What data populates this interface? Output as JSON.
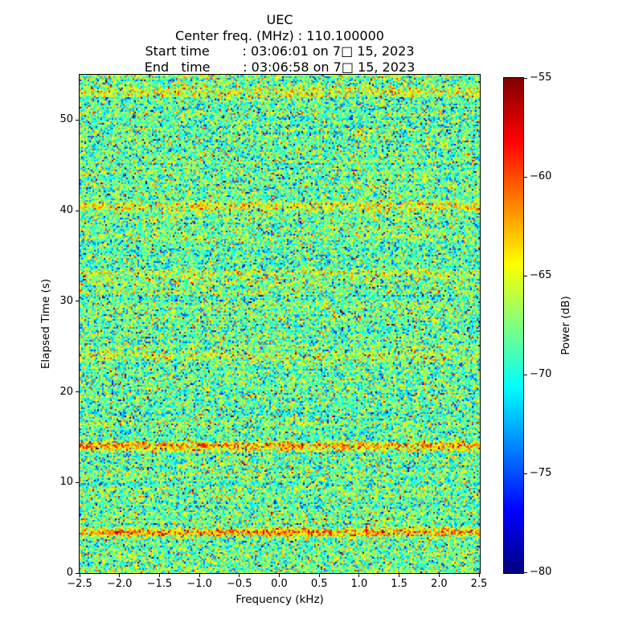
{
  "chart_data": {
    "type": "heatmap",
    "variant": "spectrogram",
    "title": "UEC",
    "annotations": [
      "Center freq. (MHz) : 110.100000",
      "Start time        : 03:06:01 on 7□ 15, 2023",
      "End   time        : 03:06:58 on 7□ 15, 2023"
    ],
    "xlabel": "Frequency (kHz)",
    "ylabel": "Elapsed Time (s)",
    "xlim": [
      -2.5,
      2.5
    ],
    "ylim": [
      0,
      55
    ],
    "grid": false,
    "xticks": [
      {
        "v": -2.5,
        "label": "−2.5"
      },
      {
        "v": -2.0,
        "label": "−2.0"
      },
      {
        "v": -1.5,
        "label": "−1.5"
      },
      {
        "v": -1.0,
        "label": "−1.0"
      },
      {
        "v": -0.5,
        "label": "−0.5"
      },
      {
        "v": 0.0,
        "label": "0.0"
      },
      {
        "v": 0.5,
        "label": "0.5"
      },
      {
        "v": 1.0,
        "label": "1.0"
      },
      {
        "v": 1.5,
        "label": "1.5"
      },
      {
        "v": 2.0,
        "label": "2.0"
      },
      {
        "v": 2.5,
        "label": "2.5"
      }
    ],
    "yticks": [
      {
        "v": 0,
        "label": "0"
      },
      {
        "v": 10,
        "label": "10"
      },
      {
        "v": 20,
        "label": "20"
      },
      {
        "v": 30,
        "label": "30"
      },
      {
        "v": 40,
        "label": "40"
      },
      {
        "v": 50,
        "label": "50"
      }
    ],
    "colorbar": {
      "label": "Power (dB)",
      "colormap": "jet",
      "clim": [
        -80,
        -55
      ],
      "ticks": [
        {
          "v": -55,
          "label": "−55"
        },
        {
          "v": -60,
          "label": "−60"
        },
        {
          "v": -65,
          "label": "−65"
        },
        {
          "v": -70,
          "label": "−70"
        },
        {
          "v": -75,
          "label": "−75"
        },
        {
          "v": -80,
          "label": "−80"
        }
      ]
    },
    "noise": {
      "mean_db": -68.2,
      "std_db": 3.1,
      "row_std_db": 0.7,
      "outlier_prob": 0.06,
      "outlier_std_db": 6
    },
    "streak_rows": [
      {
        "time_s": 4.5,
        "boost_db": 5.5
      },
      {
        "time_s": 14.0,
        "boost_db": 5.5
      },
      {
        "time_s": 24.0,
        "boost_db": 2.5
      },
      {
        "time_s": 33.0,
        "boost_db": 2.5
      },
      {
        "time_s": 40.5,
        "boost_db": 3.5
      },
      {
        "time_s": 53.0,
        "boost_db": 3.0
      }
    ]
  }
}
